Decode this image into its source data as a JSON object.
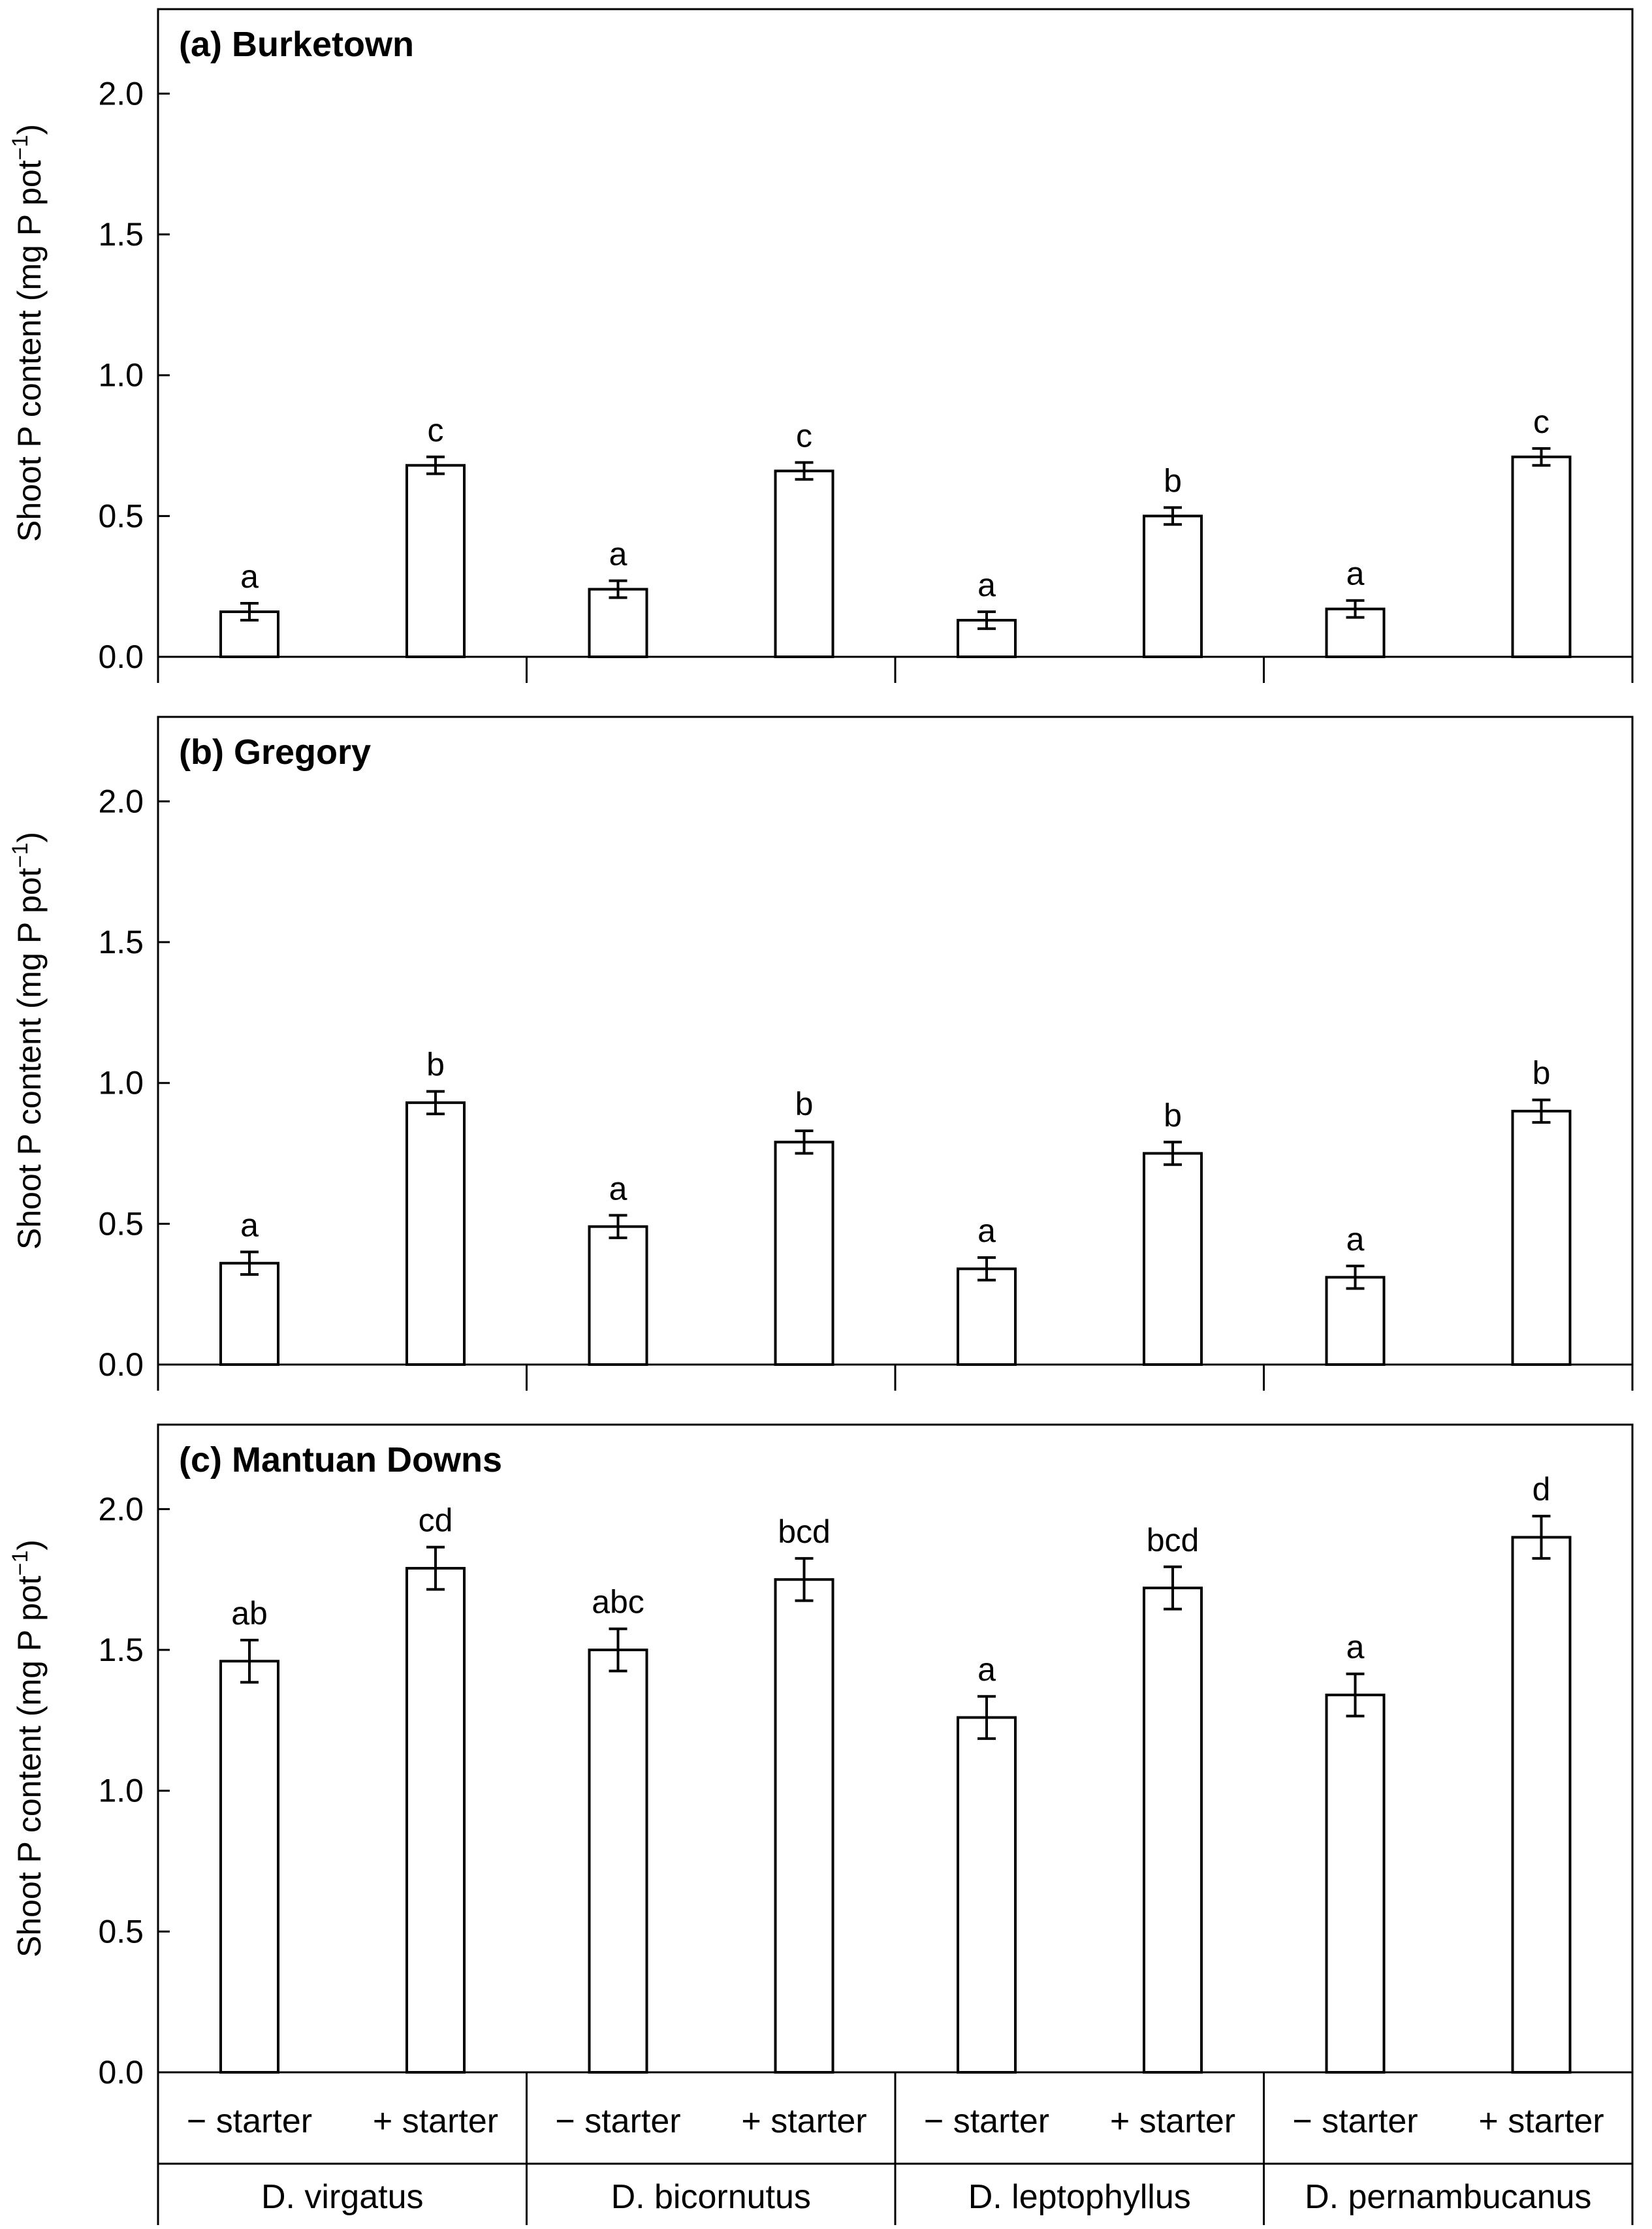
{
  "chart_data": [
    {
      "type": "bar",
      "title": "(a) Burketown",
      "ylabel": "Shoot P content (mg P pot",
      "ylabel_sup": "−1",
      "ylabel_end": ")",
      "ylim": [
        0,
        2.3
      ],
      "yticks": [
        "0.0",
        "0.5",
        "1.0",
        "1.5",
        "2.0"
      ],
      "categories": [
        "− starter",
        "+ starter",
        "− starter",
        "+ starter",
        "− starter",
        "+ starter",
        "− starter",
        "+ starter"
      ],
      "values": [
        0.16,
        0.68,
        0.24,
        0.66,
        0.13,
        0.5,
        0.17,
        0.71
      ],
      "errors": [
        0.03,
        0.03,
        0.03,
        0.03,
        0.03,
        0.03,
        0.03,
        0.03
      ],
      "letters": [
        "a",
        "c",
        "a",
        "c",
        "a",
        "b",
        "a",
        "c"
      ]
    },
    {
      "type": "bar",
      "title": "(b) Gregory",
      "ylabel": "Shoot P content (mg P pot",
      "ylabel_sup": "−1",
      "ylabel_end": ")",
      "ylim": [
        0,
        2.3
      ],
      "yticks": [
        "0.0",
        "0.5",
        "1.0",
        "1.5",
        "2.0"
      ],
      "categories": [
        "− starter",
        "+ starter",
        "− starter",
        "+ starter",
        "− starter",
        "+ starter",
        "− starter",
        "+ starter"
      ],
      "values": [
        0.36,
        0.93,
        0.49,
        0.79,
        0.34,
        0.75,
        0.31,
        0.9
      ],
      "errors": [
        0.04,
        0.04,
        0.04,
        0.04,
        0.04,
        0.04,
        0.04,
        0.04
      ],
      "letters": [
        "a",
        "b",
        "a",
        "b",
        "a",
        "b",
        "a",
        "b"
      ]
    },
    {
      "type": "bar",
      "title": "(c) Mantuan Downs",
      "ylabel": "Shoot P content (mg P pot",
      "ylabel_sup": "−1",
      "ylabel_end": ")",
      "ylim": [
        0,
        2.3
      ],
      "yticks": [
        "0.0",
        "0.5",
        "1.0",
        "1.5",
        "2.0"
      ],
      "categories": [
        "− starter",
        "+ starter",
        "− starter",
        "+ starter",
        "− starter",
        "+ starter",
        "− starter",
        "+ starter"
      ],
      "values": [
        1.46,
        1.79,
        1.5,
        1.75,
        1.26,
        1.72,
        1.34,
        1.9
      ],
      "errors": [
        0.075,
        0.075,
        0.075,
        0.075,
        0.075,
        0.075,
        0.075,
        0.075
      ],
      "letters": [
        "ab",
        "cd",
        "abc",
        "bcd",
        "a",
        "bcd",
        "a",
        "d"
      ]
    }
  ],
  "treatment_labels": [
    "− starter",
    "+ starter",
    "− starter",
    "+ starter",
    "− starter",
    "+ starter",
    "− starter",
    "+ starter"
  ],
  "species": [
    "D. virgatus",
    "D. bicornutus",
    "D. leptophyllus",
    "D. pernambucanus"
  ]
}
